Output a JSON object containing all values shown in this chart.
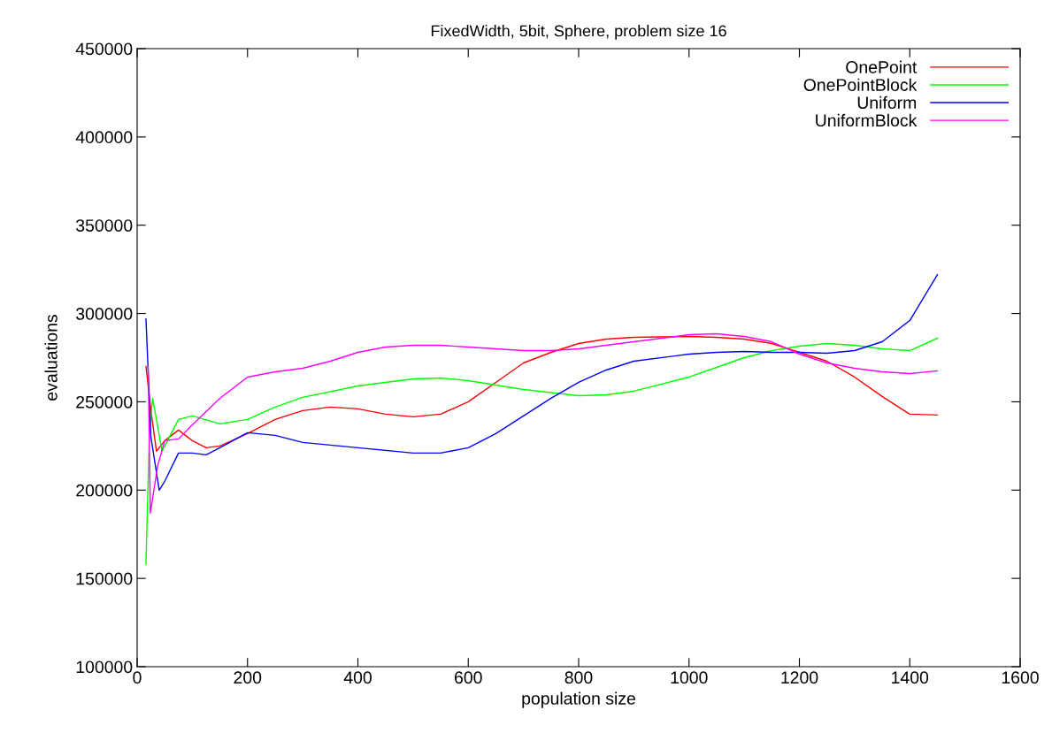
{
  "chart_data": {
    "type": "line",
    "title": "FixedWidth, 5bit, Sphere, problem size 16",
    "xlabel": "population size",
    "ylabel": "evaluations",
    "xlim": [
      0,
      1600
    ],
    "xticks": [
      0,
      200,
      400,
      600,
      800,
      1000,
      1200,
      1400,
      1600
    ],
    "ylim": [
      100000,
      450000
    ],
    "yticks": [
      100000,
      150000,
      200000,
      250000,
      300000,
      350000,
      400000,
      450000
    ],
    "grid": false,
    "legend": "top right",
    "series": [
      {
        "name": "OnePoint",
        "color": "#ff0000",
        "x": [
          16,
          25,
          35,
          50,
          75,
          100,
          125,
          150,
          200,
          250,
          300,
          350,
          400,
          450,
          500,
          550,
          600,
          650,
          700,
          750,
          800,
          850,
          900,
          1000,
          1050,
          1100,
          1150,
          1200,
          1250,
          1300,
          1350,
          1400,
          1450
        ],
        "values": [
          270000,
          245000,
          222000,
          228000,
          234000,
          228000,
          224000,
          225000,
          232000,
          240000,
          245000,
          247000,
          246000,
          243000,
          241500,
          243000,
          250000,
          261000,
          272000,
          278000,
          283000,
          285500,
          286500,
          287000,
          286500,
          285500,
          283000,
          278000,
          273000,
          264000,
          253000,
          243000,
          242500
        ]
      },
      {
        "name": "OnePointBlock",
        "color": "#00ff00",
        "x": [
          16,
          22,
          28,
          35,
          45,
          55,
          75,
          100,
          150,
          200,
          250,
          300,
          400,
          500,
          550,
          600,
          700,
          800,
          850,
          900,
          1000,
          1050,
          1100,
          1150,
          1200,
          1250,
          1300,
          1350,
          1400,
          1450
        ],
        "values": [
          158000,
          230000,
          252000,
          240000,
          222000,
          228000,
          240000,
          242000,
          237500,
          240000,
          247000,
          252500,
          259000,
          263000,
          263500,
          262000,
          257000,
          253500,
          254000,
          256000,
          264000,
          269500,
          275000,
          279000,
          281500,
          283000,
          282000,
          280000,
          279000,
          286000
        ]
      },
      {
        "name": "Uniform",
        "color": "#0000ff",
        "x": [
          16,
          25,
          40,
          50,
          75,
          100,
          125,
          150,
          200,
          250,
          300,
          400,
          500,
          550,
          600,
          650,
          700,
          750,
          800,
          850,
          900,
          1000,
          1050,
          1100,
          1150,
          1200,
          1250,
          1300,
          1350,
          1400,
          1450
        ],
        "values": [
          297000,
          230000,
          200000,
          205000,
          221000,
          221000,
          220000,
          224000,
          232500,
          231000,
          227000,
          224000,
          221000,
          221000,
          224000,
          232000,
          242000,
          252000,
          261000,
          268000,
          273000,
          277000,
          278000,
          278500,
          278000,
          278000,
          277500,
          279000,
          284000,
          296000,
          322000
        ]
      },
      {
        "name": "UniformBlock",
        "color": "#ff00ff",
        "x": [
          20,
          24,
          37,
          50,
          75,
          100,
          150,
          200,
          250,
          300,
          350,
          400,
          450,
          500,
          550,
          600,
          700,
          750,
          800,
          900,
          1000,
          1050,
          1100,
          1150,
          1200,
          1250,
          1300,
          1350,
          1400,
          1450
        ],
        "values": [
          270000,
          187000,
          213600,
          228000,
          229000,
          237000,
          252000,
          264000,
          267000,
          269000,
          273000,
          278000,
          281000,
          282000,
          282000,
          281000,
          279000,
          279000,
          280000,
          284000,
          288000,
          288500,
          287000,
          284000,
          277000,
          272000,
          269000,
          267000,
          266000,
          267500
        ]
      }
    ]
  }
}
